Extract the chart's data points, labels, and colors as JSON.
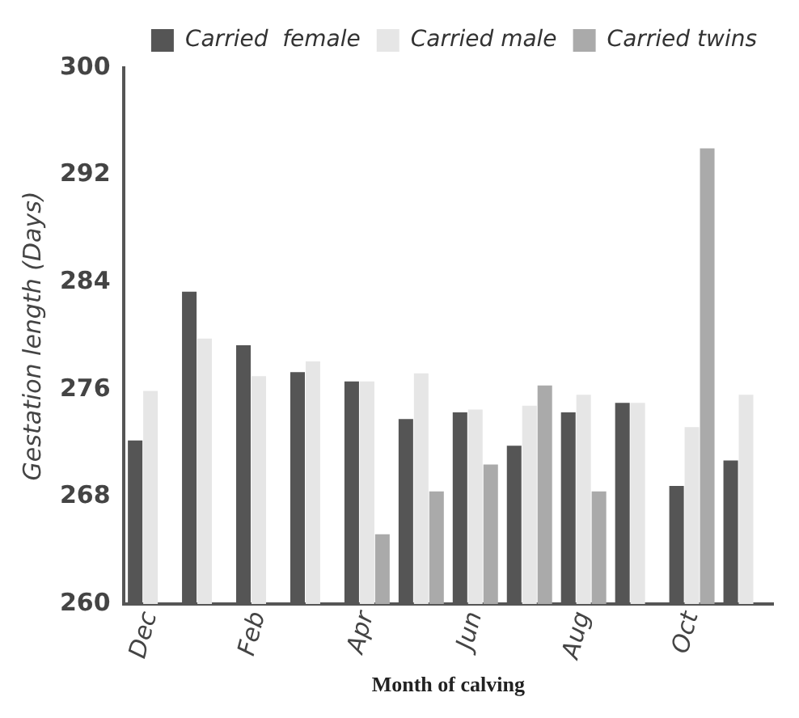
{
  "chart_data": {
    "type": "bar",
    "xlabel": "Month of calving",
    "ylabel": "Gestation length (Days)",
    "categories": [
      "Dec",
      null,
      "Feb",
      null,
      "Apr",
      null,
      "Jun",
      null,
      "Aug",
      null,
      "Oct",
      null
    ],
    "series": [
      {
        "name": "Carried  female",
        "color": "#555555",
        "values": [
          272.2,
          283.3,
          279.3,
          277.3,
          276.6,
          273.8,
          274.3,
          271.8,
          274.3,
          275,
          268.8,
          270.7
        ]
      },
      {
        "name": "Carried male",
        "color": "#e6e6e6",
        "values": [
          275.9,
          279.8,
          277,
          278.1,
          276.6,
          277.2,
          274.5,
          274.8,
          275.6,
          275,
          273.2,
          275.6
        ]
      },
      {
        "name": "Carried twins",
        "color": "#aaaaaa",
        "values": [
          null,
          null,
          null,
          null,
          265.2,
          268.4,
          270.4,
          276.3,
          268.4,
          null,
          294,
          null
        ]
      }
    ],
    "ylim": [
      260,
      300
    ],
    "yticks": [
      260,
      268,
      276,
      284,
      292,
      300
    ],
    "grid": false,
    "legend": "top right"
  }
}
